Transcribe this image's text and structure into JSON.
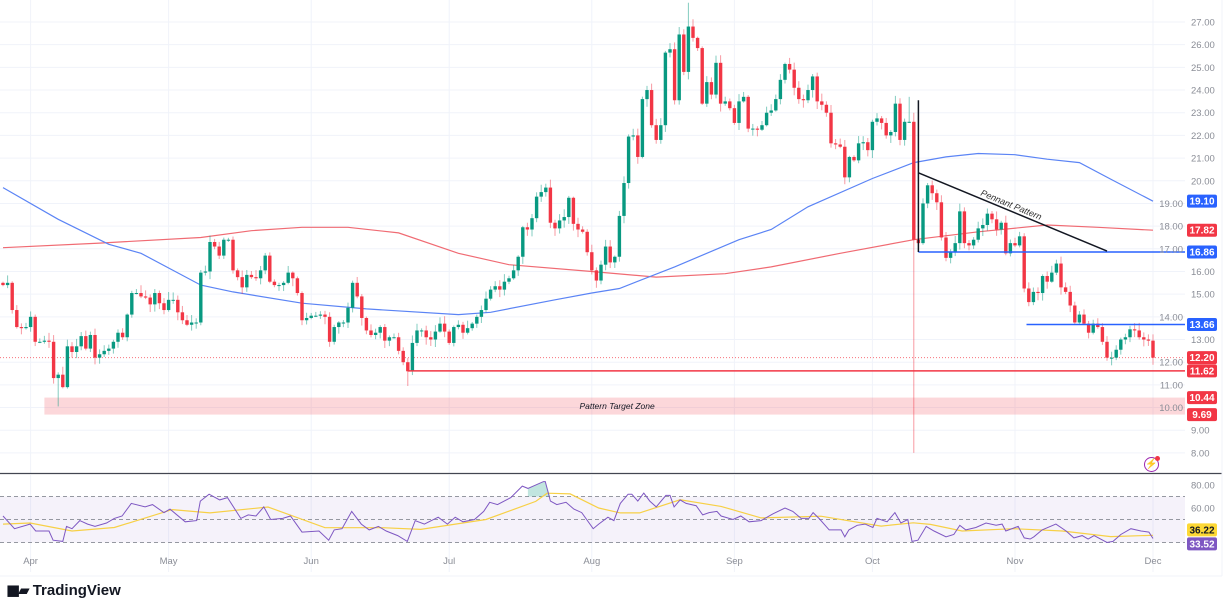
{
  "branding": {
    "logo_mark": "17",
    "name": "TradingView"
  },
  "icons": {
    "flash": "lightning-icon"
  },
  "colors": {
    "up": "#089981",
    "down": "#f23645",
    "sma_fast": "#5b84f5",
    "sma_slow": "#f06b73",
    "level_blue": "#2962ff",
    "level_red": "#f23645",
    "rsi": "#7e57c2",
    "rsi_ma": "#f7d046",
    "annotation": "#131722"
  },
  "chart_data": {
    "type": "candlestick",
    "interval": "1D",
    "first_date": "Mar 26",
    "closes": [
      15.4,
      15.5,
      14.3,
      13.55,
      13.5,
      13.55,
      14.0,
      12.9,
      12.9,
      12.95,
      12.9,
      11.3,
      11.45,
      10.9,
      12.7,
      12.45,
      12.7,
      13.15,
      12.6,
      13.2,
      12.2,
      12.35,
      12.5,
      12.6,
      12.9,
      13.3,
      13.1,
      14.1,
      15.05,
      15.05,
      14.9,
      14.85,
      14.55,
      15.05,
      14.6,
      14.3,
      14.75,
      14.75,
      14.2,
      13.85,
      13.65,
      13.75,
      13.75,
      15.95,
      16.0,
      17.3,
      17.1,
      16.7,
      17.4,
      17.4,
      16.05,
      15.75,
      15.3,
      15.85,
      15.75,
      15.7,
      16.05,
      16.7,
      15.55,
      15.4,
      15.4,
      15.5,
      15.95,
      15.7,
      15.05,
      13.85,
      13.95,
      14.05,
      14.05,
      14.1,
      14.0,
      12.9,
      13.55,
      13.75,
      13.75,
      14.4,
      15.5,
      14.9,
      13.95,
      13.4,
      13.2,
      13.3,
      13.55,
      12.95,
      13.1,
      13.1,
      12.5,
      12.0,
      11.6,
      12.85,
      13.4,
      13.4,
      13.1,
      13.0,
      13.35,
      13.7,
      13.35,
      12.85,
      13.55,
      13.65,
      13.3,
      13.5,
      13.7,
      14.0,
      14.3,
      14.8,
      15.2,
      15.35,
      15.2,
      15.55,
      15.7,
      16.05,
      16.65,
      17.95,
      17.85,
      18.35,
      19.3,
      19.5,
      19.7,
      18.15,
      17.9,
      18.25,
      18.4,
      19.25,
      18.1,
      17.85,
      17.75,
      16.85,
      16.05,
      15.6,
      16.3,
      17.1,
      16.4,
      16.65,
      18.45,
      19.9,
      21.95,
      22.0,
      21.05,
      23.6,
      24.0,
      22.45,
      21.8,
      22.45,
      25.65,
      25.8,
      23.55,
      26.45,
      24.8,
      26.8,
      26.3,
      25.85,
      23.4,
      24.35,
      23.8,
      25.2,
      23.4,
      23.5,
      23.2,
      22.55,
      23.5,
      23.7,
      22.3,
      22.3,
      22.25,
      22.45,
      23.0,
      23.1,
      23.6,
      24.45,
      25.15,
      24.9,
      24.1,
      23.6,
      23.55,
      24.0,
      24.6,
      23.5,
      23.35,
      23.0,
      21.65,
      21.6,
      21.5,
      20.15,
      21.05,
      20.9,
      21.65,
      21.7,
      21.35,
      22.6,
      22.75,
      22.55,
      22.0,
      22.15,
      23.4,
      21.8,
      22.6,
      22.6,
      17.4,
      17.25,
      19.0,
      19.8,
      19.45,
      19.05,
      17.5,
      16.6,
      16.85,
      17.25,
      18.65,
      17.25,
      17.15,
      17.4,
      17.9,
      18.05,
      18.55,
      18.3,
      17.85,
      18.15,
      16.8,
      17.25,
      17.15,
      17.55,
      15.25,
      14.65,
      15.1,
      15.05,
      15.8,
      15.55,
      15.95,
      16.35,
      15.3,
      15.1,
      14.5,
      13.75,
      14.1,
      13.7,
      13.3,
      13.7,
      13.55,
      12.9,
      12.2,
      12.2,
      12.55,
      13.0,
      13.1,
      13.45,
      13.4,
      13.1,
      13.0,
      12.95,
      12.2
    ],
    "extremes": [
      {
        "i": 12,
        "low": 10.05
      },
      {
        "i": 88,
        "low": 10.95
      },
      {
        "i": 149,
        "high": 27.85
      },
      {
        "i": 197,
        "high": 23.7
      },
      {
        "i": 198,
        "high": 23.0,
        "low": 8.0
      }
    ],
    "sma_fast": [
      [
        0,
        19.7
      ],
      [
        12,
        18.3
      ],
      [
        23,
        17.2
      ],
      [
        30,
        16.8
      ],
      [
        43,
        15.4
      ],
      [
        50,
        15.1
      ],
      [
        65,
        14.6
      ],
      [
        79,
        14.35
      ],
      [
        99,
        14.1
      ],
      [
        106,
        14.2
      ],
      [
        120,
        14.75
      ],
      [
        128,
        15.05
      ],
      [
        134,
        15.25
      ],
      [
        146,
        16.2
      ],
      [
        160,
        17.4
      ],
      [
        167,
        17.85
      ],
      [
        175,
        18.85
      ],
      [
        189,
        20.1
      ],
      [
        198,
        20.8
      ],
      [
        205,
        21.05
      ],
      [
        212,
        21.2
      ],
      [
        220,
        21.15
      ],
      [
        227,
        20.95
      ],
      [
        234,
        20.8
      ],
      [
        241,
        20.05
      ],
      [
        250,
        19.1
      ]
    ],
    "sma_slow": [
      [
        0,
        17.05
      ],
      [
        21,
        17.25
      ],
      [
        43,
        17.5
      ],
      [
        54,
        17.8
      ],
      [
        65,
        17.95
      ],
      [
        75,
        17.95
      ],
      [
        86,
        17.7
      ],
      [
        99,
        16.8
      ],
      [
        110,
        16.3
      ],
      [
        128,
        16.0
      ],
      [
        142,
        15.75
      ],
      [
        157,
        15.9
      ],
      [
        167,
        16.2
      ],
      [
        182,
        16.8
      ],
      [
        198,
        17.4
      ],
      [
        212,
        17.75
      ],
      [
        227,
        18.05
      ],
      [
        238,
        17.95
      ],
      [
        250,
        17.82
      ]
    ],
    "rsi": [
      [
        0,
        53
      ],
      [
        2.5,
        42
      ],
      [
        5.9,
        46
      ],
      [
        7.1,
        40
      ],
      [
        10,
        40
      ],
      [
        10.9,
        32
      ],
      [
        13,
        31
      ],
      [
        13.8,
        44
      ],
      [
        15,
        42
      ],
      [
        16.7,
        49
      ],
      [
        18.4,
        46
      ],
      [
        20,
        44
      ],
      [
        22.5,
        47
      ],
      [
        24.2,
        51
      ],
      [
        25.9,
        53
      ],
      [
        27.9,
        64
      ],
      [
        30.9,
        61
      ],
      [
        32.5,
        63
      ],
      [
        35,
        56
      ],
      [
        36.3,
        59
      ],
      [
        39.6,
        48
      ],
      [
        42.1,
        49
      ],
      [
        42.9,
        66
      ],
      [
        44.8,
        72
      ],
      [
        47.1,
        67
      ],
      [
        48.8,
        69
      ],
      [
        51.7,
        51
      ],
      [
        53.3,
        54
      ],
      [
        55,
        53
      ],
      [
        56.7,
        61
      ],
      [
        58.2,
        50
      ],
      [
        60.8,
        51
      ],
      [
        62.5,
        53
      ],
      [
        65,
        39
      ],
      [
        68.7,
        40
      ],
      [
        70.8,
        32
      ],
      [
        72,
        41
      ],
      [
        73.7,
        42
      ],
      [
        75.8,
        57
      ],
      [
        77.9,
        46
      ],
      [
        79.6,
        41
      ],
      [
        81.6,
        44
      ],
      [
        83.3,
        40
      ],
      [
        85.8,
        36
      ],
      [
        87.9,
        31
      ],
      [
        89.6,
        49
      ],
      [
        91.6,
        46
      ],
      [
        94.6,
        52
      ],
      [
        96.6,
        46
      ],
      [
        98.3,
        52
      ],
      [
        100,
        48
      ],
      [
        102.5,
        50
      ],
      [
        104.5,
        57
      ],
      [
        105.8,
        65
      ],
      [
        107.5,
        63
      ],
      [
        110.4,
        69
      ],
      [
        112.9,
        79
      ],
      [
        114.1,
        77
      ],
      [
        117.5,
        83
      ],
      [
        117.9,
        83
      ],
      [
        119,
        66
      ],
      [
        120.4,
        63
      ],
      [
        122.4,
        65
      ],
      [
        124.1,
        59
      ],
      [
        125.8,
        56
      ],
      [
        128.3,
        42
      ],
      [
        129.5,
        46
      ],
      [
        131.5,
        52
      ],
      [
        132.8,
        49
      ],
      [
        134.2,
        64
      ],
      [
        135.9,
        72
      ],
      [
        136.7,
        72
      ],
      [
        138,
        66
      ],
      [
        139.3,
        73
      ],
      [
        140.6,
        66
      ],
      [
        142,
        61
      ],
      [
        144.1,
        71
      ],
      [
        145,
        71
      ],
      [
        145.9,
        61
      ],
      [
        147.2,
        67
      ],
      [
        148.5,
        64
      ],
      [
        150.7,
        62
      ],
      [
        152.1,
        54
      ],
      [
        153.5,
        56
      ],
      [
        155.2,
        57
      ],
      [
        156.1,
        53
      ],
      [
        158.7,
        50
      ],
      [
        160.4,
        53
      ],
      [
        162.2,
        48
      ],
      [
        164.8,
        49
      ],
      [
        167.4,
        55
      ],
      [
        170,
        60
      ],
      [
        171.7,
        57
      ],
      [
        173.5,
        51
      ],
      [
        175.2,
        51
      ],
      [
        176.1,
        56
      ],
      [
        177.4,
        51
      ],
      [
        179.6,
        41
      ],
      [
        182.2,
        41
      ],
      [
        183,
        35
      ],
      [
        183.9,
        41
      ],
      [
        185.7,
        45
      ],
      [
        187.4,
        46
      ],
      [
        189.1,
        43
      ],
      [
        190,
        51
      ],
      [
        192.2,
        48
      ],
      [
        193.9,
        56
      ],
      [
        195.2,
        47
      ],
      [
        196.7,
        50
      ],
      [
        197.6,
        31
      ],
      [
        198.9,
        32
      ],
      [
        200.7,
        44
      ],
      [
        202.4,
        40
      ],
      [
        205,
        35
      ],
      [
        206.7,
        37
      ],
      [
        208,
        45
      ],
      [
        209.3,
        41
      ],
      [
        211.5,
        43
      ],
      [
        213.7,
        47
      ],
      [
        215.9,
        45
      ],
      [
        217.2,
        46
      ],
      [
        218,
        40
      ],
      [
        220.7,
        44
      ],
      [
        222,
        34
      ],
      [
        223.3,
        33
      ],
      [
        224.1,
        35
      ],
      [
        225.9,
        41
      ],
      [
        228.9,
        46
      ],
      [
        231.1,
        40
      ],
      [
        232.8,
        34
      ],
      [
        234.6,
        36
      ],
      [
        235.9,
        33
      ],
      [
        237.2,
        36
      ],
      [
        240,
        30
      ],
      [
        241.3,
        31
      ],
      [
        243,
        37
      ],
      [
        245.2,
        42
      ],
      [
        247.4,
        40
      ],
      [
        249.1,
        39
      ],
      [
        250,
        33.52
      ]
    ],
    "rsi_ma": [
      [
        0,
        46
      ],
      [
        5.9,
        47
      ],
      [
        15,
        40
      ],
      [
        24.2,
        43
      ],
      [
        36.8,
        58.6
      ],
      [
        45,
        55.7
      ],
      [
        57.6,
        60.9
      ],
      [
        70,
        42.9
      ],
      [
        82.5,
        42.9
      ],
      [
        90.8,
        41.4
      ],
      [
        105,
        50
      ],
      [
        115.8,
        65.7
      ],
      [
        118.3,
        72.9
      ],
      [
        123.3,
        72.3
      ],
      [
        129.5,
        60
      ],
      [
        134.2,
        55.7
      ],
      [
        138.4,
        55.7
      ],
      [
        147.2,
        67.1
      ],
      [
        156.1,
        61.4
      ],
      [
        164.8,
        51.4
      ],
      [
        177.8,
        52.9
      ],
      [
        190.9,
        44.3
      ],
      [
        197.9,
        47.1
      ],
      [
        201.6,
        45.7
      ],
      [
        208.5,
        40
      ],
      [
        219.8,
        42
      ],
      [
        230.3,
        40
      ],
      [
        240.8,
        35.1
      ],
      [
        250,
        36.22
      ]
    ],
    "rsi_levels": {
      "upper": 70,
      "middle": 50,
      "lower": 30
    },
    "price_axis": {
      "range": [
        8,
        27
      ],
      "ticks": [
        "8.00",
        "9.00",
        "10.00",
        "11.00",
        "12.00",
        "13.00",
        "14.00",
        "15.00",
        "16.00",
        "17.00",
        "18.00",
        "19.00",
        "20.00",
        "21.00",
        "22.00",
        "23.00",
        "24.00",
        "25.00",
        "26.00",
        "27.00"
      ]
    },
    "rsi_axis": {
      "ticks": [
        {
          "v": 80,
          "label": "80.00"
        },
        {
          "v": 60,
          "label": "60.00"
        }
      ]
    },
    "time_axis": [
      {
        "i": 6,
        "label": "Apr"
      },
      {
        "i": 36,
        "label": "May"
      },
      {
        "i": 67,
        "label": "Jun"
      },
      {
        "i": 97,
        "label": "Jul"
      },
      {
        "i": 128,
        "label": "Aug"
      },
      {
        "i": 159,
        "label": "Sep"
      },
      {
        "i": 189,
        "label": "Oct"
      },
      {
        "i": 220,
        "label": "Nov"
      },
      {
        "i": 250,
        "label": "Dec"
      }
    ],
    "annotations": {
      "pennant_pole": {
        "i": 199,
        "from": 23.55,
        "to": 16.86
      },
      "pennant_line": {
        "i1": 199,
        "p1": 20.35,
        "i2": 240,
        "p2": 16.9,
        "label": "Pennant Pattern"
      },
      "levels": [
        {
          "value": 16.86,
          "from_i": 199,
          "color": "blue"
        },
        {
          "value": 13.66,
          "from_i": 222.5,
          "color": "blue"
        },
        {
          "value": 11.62,
          "from_i": 88,
          "color": "red"
        }
      ],
      "target_zone": {
        "top": 10.44,
        "bottom": 9.69,
        "from_i": 9,
        "label": "Pattern Target Zone",
        "label_i": 133.5
      }
    },
    "last_price": 12.2,
    "badges": [
      {
        "value": "19.10",
        "p": 19.1,
        "bg": "#2962ff",
        "fg": "#ffffff",
        "pane": "price"
      },
      {
        "value": "17.82",
        "p": 17.82,
        "bg": "#f23645",
        "fg": "#ffffff",
        "pane": "price"
      },
      {
        "value": "16.86",
        "p": 16.86,
        "bg": "#2962ff",
        "fg": "#ffffff",
        "pane": "price"
      },
      {
        "value": "13.66",
        "p": 13.66,
        "bg": "#2962ff",
        "fg": "#ffffff",
        "pane": "price"
      },
      {
        "value": "12.20",
        "p": 12.2,
        "bg": "#f23645",
        "fg": "#ffffff",
        "pane": "price"
      },
      {
        "value": "11.62",
        "p": 11.62,
        "bg": "#f23645",
        "fg": "#ffffff",
        "pane": "price"
      },
      {
        "value": "10.44",
        "p": 10.44,
        "bg": "#f23645",
        "fg": "#ffffff",
        "pane": "price"
      },
      {
        "value": "9.69",
        "p": 9.69,
        "bg": "#f23645",
        "fg": "#ffffff",
        "pane": "price"
      },
      {
        "value": "36.22",
        "p": 36.22,
        "bg": "#fdd835",
        "fg": "#131722",
        "pane": "rsi"
      },
      {
        "value": "33.52",
        "p": 33.52,
        "bg": "#7e57c2",
        "fg": "#ffffff",
        "pane": "rsi"
      }
    ]
  }
}
